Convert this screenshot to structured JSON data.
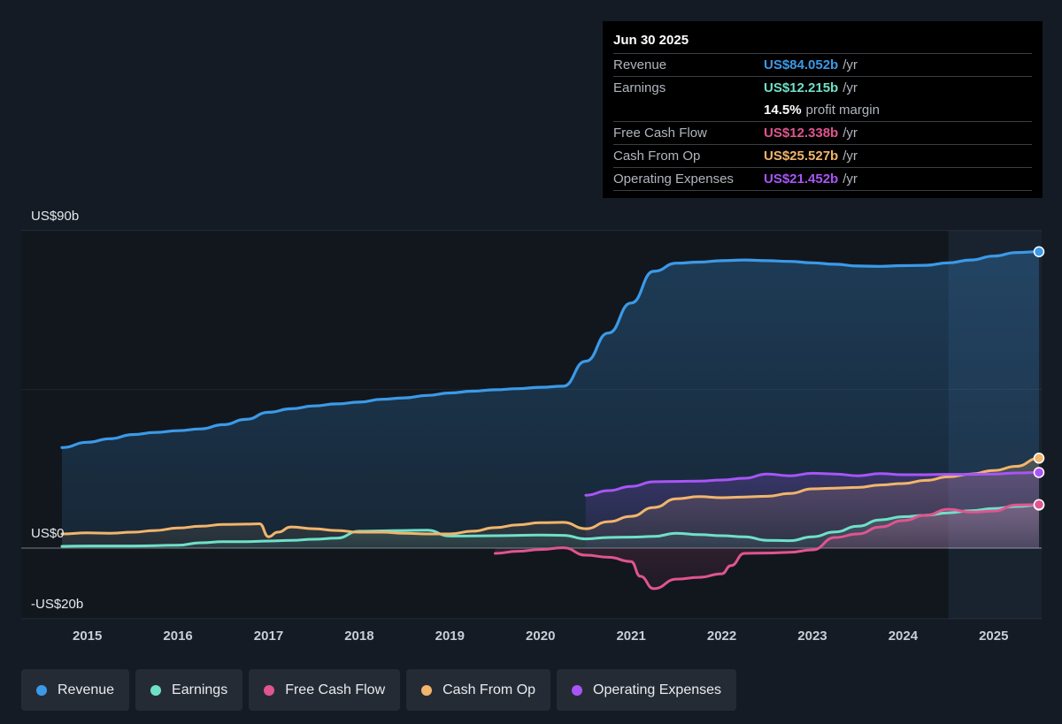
{
  "tooltip": {
    "date": "Jun 30 2025",
    "rows": [
      {
        "label": "Revenue",
        "value": "US$84.052b",
        "unit": "/yr",
        "color": "#3b9ae8"
      },
      {
        "label": "Earnings",
        "value": "US$12.215b",
        "unit": "/yr",
        "color": "#6fe0c8"
      },
      {
        "label": "",
        "value": "14.5%",
        "unit": "profit margin",
        "color": "#ffffff"
      },
      {
        "label": "Free Cash Flow",
        "value": "US$12.338b",
        "unit": "/yr",
        "color": "#e0558f"
      },
      {
        "label": "Cash From Op",
        "value": "US$25.527b",
        "unit": "/yr",
        "color": "#f2b56b"
      },
      {
        "label": "Operating Expenses",
        "value": "US$21.452b",
        "unit": "/yr",
        "color": "#a855f7"
      }
    ]
  },
  "legend": [
    {
      "label": "Revenue",
      "color": "#3b9ae8"
    },
    {
      "label": "Earnings",
      "color": "#6fe0c8"
    },
    {
      "label": "Free Cash Flow",
      "color": "#e0558f"
    },
    {
      "label": "Cash From Op",
      "color": "#f2b56b"
    },
    {
      "label": "Operating Expenses",
      "color": "#a855f7"
    }
  ],
  "chart_data": {
    "type": "area",
    "y_tick_labels": [
      {
        "value": 90,
        "label": "US$90b"
      },
      {
        "value": 0,
        "label": "US$0"
      },
      {
        "value": -20,
        "label": "-US$20b"
      }
    ],
    "ylim": [
      -20,
      90
    ],
    "xlim": [
      2014.72,
      2025.5
    ],
    "x_ticks": [
      2015,
      2016,
      2017,
      2018,
      2019,
      2020,
      2021,
      2022,
      2023,
      2024,
      2025
    ],
    "gridlines": [
      90,
      45,
      0,
      -20
    ],
    "forecast_region_start": 2024.5,
    "series": [
      {
        "name": "Revenue",
        "color": "#3b9ae8",
        "fill": true,
        "x": [
          2014.72,
          2015.0,
          2015.25,
          2015.5,
          2015.75,
          2016.0,
          2016.25,
          2016.5,
          2016.75,
          2017.0,
          2017.25,
          2017.5,
          2017.75,
          2018.0,
          2018.25,
          2018.5,
          2018.75,
          2019.0,
          2019.25,
          2019.5,
          2019.75,
          2020.0,
          2020.25,
          2020.5,
          2020.75,
          2021.0,
          2021.25,
          2021.5,
          2021.75,
          2022.0,
          2022.25,
          2022.5,
          2022.75,
          2023.0,
          2023.25,
          2023.5,
          2023.75,
          2024.0,
          2024.25,
          2024.5,
          2024.75,
          2025.0,
          2025.25,
          2025.5
        ],
        "y": [
          28.5,
          30.0,
          31.0,
          32.2,
          32.8,
          33.3,
          33.8,
          35.0,
          36.5,
          38.5,
          39.5,
          40.3,
          40.9,
          41.4,
          42.2,
          42.6,
          43.3,
          44.0,
          44.5,
          44.9,
          45.2,
          45.6,
          45.9,
          53.0,
          61.0,
          69.5,
          78.5,
          80.8,
          81.1,
          81.5,
          81.7,
          81.5,
          81.3,
          80.9,
          80.5,
          80.0,
          79.9,
          80.1,
          80.2,
          80.9,
          81.7,
          82.8,
          83.8,
          84.05
        ]
      },
      {
        "name": "Earnings",
        "color": "#6fe0c8",
        "fill": true,
        "x": [
          2014.72,
          2015.0,
          2015.5,
          2016.0,
          2016.25,
          2016.5,
          2016.75,
          2017.0,
          2017.25,
          2017.5,
          2017.75,
          2018.0,
          2018.25,
          2018.5,
          2018.75,
          2019.0,
          2019.5,
          2020.0,
          2020.25,
          2020.5,
          2020.75,
          2021.0,
          2021.25,
          2021.5,
          2021.75,
          2022.0,
          2022.25,
          2022.5,
          2022.75,
          2023.0,
          2023.25,
          2023.5,
          2023.75,
          2024.0,
          2024.25,
          2024.5,
          2024.75,
          2025.0,
          2025.25,
          2025.5
        ],
        "y": [
          0.5,
          0.6,
          0.6,
          0.8,
          1.5,
          1.8,
          1.8,
          2.0,
          2.2,
          2.5,
          2.8,
          4.8,
          4.9,
          5.0,
          5.1,
          3.4,
          3.5,
          3.7,
          3.6,
          2.6,
          3.0,
          3.1,
          3.3,
          4.2,
          3.8,
          3.5,
          3.2,
          2.2,
          2.1,
          3.2,
          4.6,
          6.2,
          8.0,
          8.9,
          9.3,
          10.0,
          10.6,
          11.2,
          11.8,
          12.2
        ]
      },
      {
        "name": "Free Cash Flow",
        "color": "#e0558f",
        "fill": true,
        "x": [
          2019.5,
          2019.75,
          2020.0,
          2020.25,
          2020.5,
          2020.75,
          2021.0,
          2021.1,
          2021.25,
          2021.5,
          2021.75,
          2022.0,
          2022.1,
          2022.25,
          2022.5,
          2022.75,
          2023.0,
          2023.25,
          2023.5,
          2023.75,
          2024.0,
          2024.25,
          2024.5,
          2024.75,
          2025.0,
          2025.25,
          2025.5
        ],
        "y": [
          -1.5,
          -0.9,
          -0.4,
          0.1,
          -2.0,
          -2.6,
          -3.8,
          -8.0,
          -11.5,
          -8.8,
          -8.3,
          -7.3,
          -5.0,
          -1.5,
          -1.4,
          -1.2,
          -0.5,
          3.0,
          4.0,
          6.0,
          7.8,
          9.3,
          11.0,
          10.2,
          10.5,
          12.2,
          12.34
        ]
      },
      {
        "name": "Cash From Op",
        "color": "#f2b56b",
        "fill": true,
        "x": [
          2014.72,
          2015.0,
          2015.25,
          2015.5,
          2015.75,
          2016.0,
          2016.25,
          2016.5,
          2016.75,
          2016.9,
          2017.0,
          2017.1,
          2017.25,
          2017.5,
          2017.75,
          2018.0,
          2018.25,
          2018.5,
          2018.75,
          2019.0,
          2019.25,
          2019.5,
          2019.75,
          2020.0,
          2020.25,
          2020.5,
          2020.75,
          2021.0,
          2021.25,
          2021.5,
          2021.75,
          2022.0,
          2022.25,
          2022.5,
          2022.75,
          2023.0,
          2023.25,
          2023.5,
          2023.75,
          2024.0,
          2024.25,
          2024.5,
          2024.75,
          2025.0,
          2025.25,
          2025.5
        ],
        "y": [
          4.0,
          4.3,
          4.2,
          4.5,
          5.0,
          5.7,
          6.2,
          6.7,
          6.8,
          6.9,
          3.2,
          4.5,
          6.0,
          5.5,
          5.0,
          4.5,
          4.5,
          4.2,
          4.0,
          4.0,
          4.8,
          5.8,
          6.6,
          7.2,
          7.3,
          5.5,
          7.5,
          9.0,
          11.5,
          14.0,
          14.6,
          14.3,
          14.5,
          14.7,
          15.5,
          16.8,
          17.0,
          17.2,
          17.9,
          18.3,
          19.2,
          20.2,
          21.0,
          22.0,
          23.2,
          25.5
        ]
      },
      {
        "name": "Operating Expenses",
        "color": "#a855f7",
        "fill": true,
        "x": [
          2020.5,
          2020.75,
          2021.0,
          2021.25,
          2021.5,
          2021.75,
          2022.0,
          2022.25,
          2022.5,
          2022.75,
          2023.0,
          2023.25,
          2023.5,
          2023.75,
          2024.0,
          2024.25,
          2024.5,
          2024.75,
          2025.0,
          2025.25,
          2025.5
        ],
        "y": [
          15.0,
          16.3,
          17.5,
          18.8,
          18.9,
          19.0,
          19.3,
          19.8,
          21.0,
          20.5,
          21.2,
          21.0,
          20.5,
          21.1,
          20.8,
          20.8,
          20.9,
          20.9,
          21.0,
          21.3,
          21.45
        ]
      }
    ]
  }
}
